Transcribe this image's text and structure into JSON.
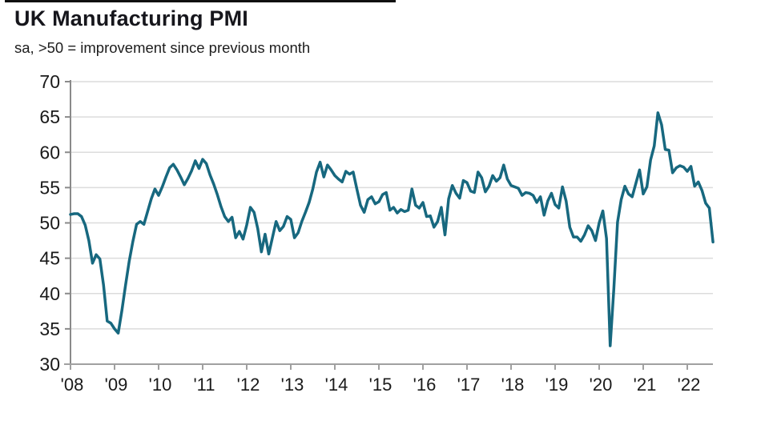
{
  "header": {
    "title": "UK Manufacturing PMI",
    "subtitle": "sa, >50 = improvement since previous month"
  },
  "colors": {
    "line": "#17687f",
    "grid": "#dcdcdc",
    "y_axis": "#8a8a8a",
    "x_axis": "#a0a0a0",
    "text": "#1a1a1a"
  },
  "chart_data": {
    "type": "line",
    "title": "UK Manufacturing PMI",
    "subtitle": "sa, >50 = improvement since previous month",
    "xlabel": "",
    "ylabel": "",
    "ylim": [
      30,
      70
    ],
    "y_ticks": [
      30,
      35,
      40,
      45,
      50,
      55,
      60,
      65,
      70
    ],
    "x_tick_labels": [
      "'08",
      "'09",
      "'10",
      "'11",
      "'12",
      "'13",
      "'14",
      "'15",
      "'16",
      "'17",
      "'18",
      "'19",
      "'20",
      "'21",
      "'22"
    ],
    "grid": "horizontal gridlines every 5 units, legend none",
    "reference_level": 50,
    "series": [
      {
        "name": "UK Manufacturing PMI (seasonally adjusted)",
        "frequency": "monthly",
        "start": "2008-01",
        "end": "2022-08",
        "color": "#17687f",
        "values": [
          51.2,
          51.3,
          51.3,
          50.9,
          49.7,
          47.5,
          44.3,
          45.5,
          44.9,
          41.2,
          36.1,
          35.8,
          35.0,
          34.4,
          37.6,
          41.2,
          44.6,
          47.4,
          49.8,
          50.2,
          49.8,
          51.6,
          53.4,
          54.8,
          53.9,
          55.1,
          56.5,
          57.8,
          58.3,
          57.5,
          56.5,
          55.4,
          56.3,
          57.4,
          58.8,
          57.7,
          59.0,
          58.4,
          56.8,
          55.5,
          54.0,
          52.3,
          50.9,
          50.2,
          50.8,
          47.9,
          48.8,
          47.7,
          49.7,
          52.2,
          51.5,
          49.2,
          45.9,
          48.4,
          45.6,
          47.9,
          50.2,
          48.9,
          49.5,
          50.9,
          50.5,
          47.9,
          48.6,
          50.2,
          51.5,
          52.9,
          54.8,
          57.2,
          58.6,
          56.5,
          58.2,
          57.5,
          56.7,
          56.2,
          55.8,
          57.3,
          56.9,
          57.2,
          54.8,
          52.5,
          51.5,
          53.3,
          53.7,
          52.7,
          53.0,
          54.0,
          54.3,
          51.8,
          52.2,
          51.4,
          51.9,
          51.6,
          51.8,
          54.8,
          52.5,
          52.1,
          52.9,
          50.9,
          51.0,
          49.4,
          50.2,
          52.2,
          48.3,
          53.4,
          55.3,
          54.2,
          53.5,
          56.0,
          55.7,
          54.5,
          54.3,
          57.2,
          56.4,
          54.4,
          55.2,
          56.7,
          55.9,
          56.4,
          58.2,
          56.2,
          55.3,
          55.1,
          54.9,
          53.9,
          54.3,
          54.2,
          53.9,
          52.9,
          53.7,
          51.1,
          53.1,
          54.2,
          52.6,
          52.1,
          55.1,
          53.1,
          49.4,
          48.0,
          48.0,
          47.4,
          48.3,
          49.6,
          48.9,
          47.5,
          50.0,
          51.7,
          47.8,
          32.6,
          40.7,
          50.1,
          53.3,
          55.2,
          54.1,
          53.7,
          55.6,
          57.5,
          54.1,
          55.1,
          58.9,
          60.9,
          65.6,
          63.9,
          60.4,
          60.3,
          57.1,
          57.8,
          58.1,
          57.9,
          57.3,
          58.0,
          55.2,
          55.8,
          54.6,
          52.8,
          52.1,
          47.3
        ]
      }
    ]
  }
}
